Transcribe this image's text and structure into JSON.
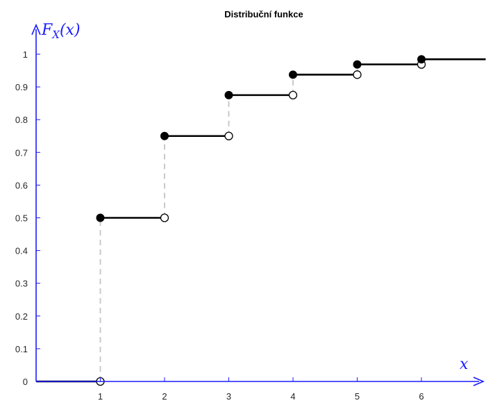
{
  "chart_data": {
    "type": "line",
    "title": "Distribuční funkce",
    "ylabel_main": "F",
    "ylabel_sub": "X",
    "ylabel_arg": "(x)",
    "xlabel": "x",
    "xlim": [
      0,
      7
    ],
    "ylim": [
      0,
      1.07
    ],
    "x_ticks": [
      "1",
      "2",
      "3",
      "4",
      "5",
      "6"
    ],
    "x_tick_values": [
      1,
      2,
      3,
      4,
      5,
      6
    ],
    "y_ticks": [
      "0",
      "0.1",
      "0.2",
      "0.3",
      "0.4",
      "0.5",
      "0.6",
      "0.7",
      "0.8",
      "0.9",
      "1"
    ],
    "y_tick_values": [
      0,
      0.1,
      0.2,
      0.3,
      0.4,
      0.5,
      0.6,
      0.7,
      0.8,
      0.9,
      1
    ],
    "series": [
      {
        "steps": [
          {
            "x_start": 0,
            "x_end": 1,
            "y": 0
          },
          {
            "x_start": 1,
            "x_end": 2,
            "y": 0.5
          },
          {
            "x_start": 2,
            "x_end": 3,
            "y": 0.75
          },
          {
            "x_start": 3,
            "x_end": 4,
            "y": 0.875
          },
          {
            "x_start": 4,
            "x_end": 5,
            "y": 0.9375
          },
          {
            "x_start": 5,
            "x_end": 6,
            "y": 0.96875
          },
          {
            "x_start": 6,
            "x_end": 7,
            "y": 0.984375
          }
        ]
      }
    ],
    "grid": false,
    "colors": {
      "axis": "#1a1aff",
      "step": "#000000",
      "jump": "#c8c8c8",
      "tick_text": "#262626"
    }
  }
}
